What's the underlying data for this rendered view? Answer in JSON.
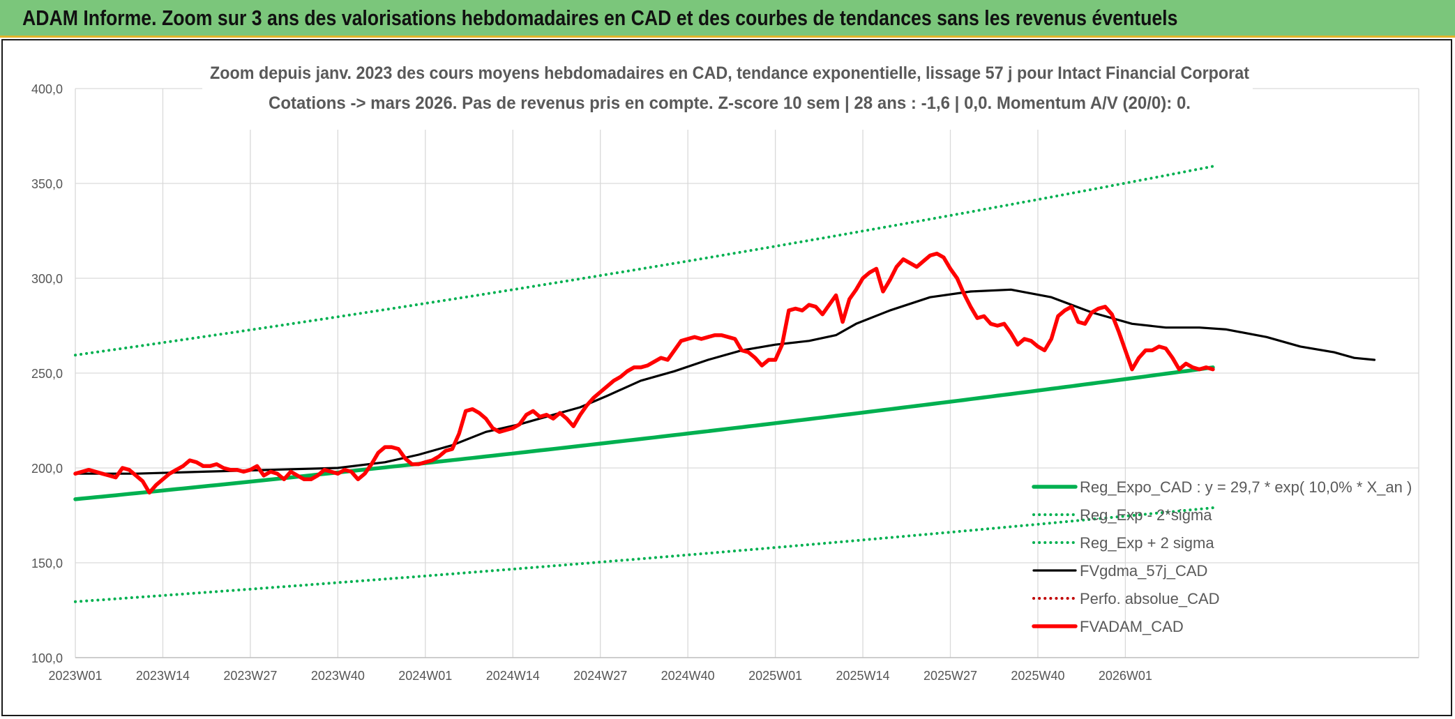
{
  "banner": {
    "title": "ADAM Informe. Zoom sur 3 ans des valorisations hebdomadaires en CAD et des courbes de tendances sans les revenus éventuels"
  },
  "colors": {
    "banner": "#7bc67b",
    "banner_border": "#e3b32a",
    "trend": "#00b050",
    "gdma": "#000000",
    "price": "#ff0000",
    "perfo": "#c00000",
    "grid": "#d9d9d9"
  },
  "chart_data": {
    "type": "line",
    "title": "Zoom depuis janv. 2023 des cours moyens hebdomadaires en CAD, tendance exponentielle, lissage 57 j pour Intact Financial Corporat",
    "subtitle": "Cotations -> mars 2026. Pas de revenus pris en compte. Z-score 10 sem | 28 ans : -1,6 | 0,0. Momentum A/V (20/0): 0.",
    "xlabel": "",
    "ylabel": "",
    "ylim": [
      100,
      400
    ],
    "yticks": [
      100,
      150,
      200,
      250,
      300,
      350,
      400
    ],
    "ytick_labels": [
      "100,0",
      "150,0",
      "200,0",
      "250,0",
      "300,0",
      "350,0",
      "400,0"
    ],
    "xtick_labels": [
      "2023W01",
      "2023W14",
      "2023W27",
      "2023W40",
      "2024W01",
      "2024W14",
      "2024W27",
      "2024W40",
      "2025W01",
      "2025W14",
      "2025W27",
      "2025W40",
      "2026W01"
    ],
    "x_week_count": 170,
    "grid": true,
    "legend_position": "bottom-right",
    "series": [
      {
        "name": "Reg_Expo_CAD : y = 29,7 * exp( 10,0% *  X_an )",
        "style": "solid-thick",
        "color": "#00b050",
        "start": [
          1,
          183.5
        ],
        "end": [
          170,
          253
        ]
      },
      {
        "name": "Reg_Exp - 2*sigma",
        "style": "dotted",
        "color": "#00b050",
        "start": [
          1,
          129.5
        ],
        "end": [
          170,
          179
        ]
      },
      {
        "name": "Reg_Exp + 2 sigma",
        "style": "dotted",
        "color": "#00b050",
        "start": [
          1,
          259.5
        ],
        "end": [
          170,
          359
        ]
      },
      {
        "name": "FVgdma_57j_CAD",
        "style": "solid",
        "color": "#000000",
        "points": [
          [
            1,
            197
          ],
          [
            10,
            197
          ],
          [
            20,
            198
          ],
          [
            30,
            199
          ],
          [
            40,
            200
          ],
          [
            47,
            203
          ],
          [
            52,
            207
          ],
          [
            57,
            212
          ],
          [
            62,
            219
          ],
          [
            67,
            223
          ],
          [
            72,
            228
          ],
          [
            76,
            232
          ],
          [
            80,
            238
          ],
          [
            85,
            246
          ],
          [
            90,
            251
          ],
          [
            95,
            257
          ],
          [
            100,
            262
          ],
          [
            105,
            265
          ],
          [
            110,
            267
          ],
          [
            114,
            270
          ],
          [
            117,
            276
          ],
          [
            122,
            283
          ],
          [
            128,
            290
          ],
          [
            134,
            293
          ],
          [
            140,
            294
          ],
          [
            146,
            290
          ],
          [
            152,
            282
          ],
          [
            158,
            276
          ],
          [
            163,
            274
          ],
          [
            168,
            274
          ],
          [
            172,
            273
          ],
          [
            178,
            269
          ],
          [
            183,
            264
          ],
          [
            188,
            261
          ],
          [
            191,
            258
          ],
          [
            194,
            257
          ]
        ]
      },
      {
        "name": "Perfo. absolue_CAD",
        "style": "dotted",
        "color": "#c00000",
        "points": []
      },
      {
        "name": "FVADAM_CAD",
        "style": "solid-thick",
        "color": "#ff0000",
        "points": [
          [
            1,
            197
          ],
          [
            2,
            198
          ],
          [
            3,
            199
          ],
          [
            4,
            198
          ],
          [
            5,
            197
          ],
          [
            6,
            196
          ],
          [
            7,
            195
          ],
          [
            8,
            200
          ],
          [
            9,
            199
          ],
          [
            10,
            196
          ],
          [
            11,
            193
          ],
          [
            12,
            187
          ],
          [
            13,
            191
          ],
          [
            14,
            194
          ],
          [
            15,
            197
          ],
          [
            16,
            199
          ],
          [
            17,
            201
          ],
          [
            18,
            204
          ],
          [
            19,
            203
          ],
          [
            20,
            201
          ],
          [
            21,
            201
          ],
          [
            22,
            202
          ],
          [
            23,
            200
          ],
          [
            24,
            199
          ],
          [
            25,
            199
          ],
          [
            26,
            198
          ],
          [
            27,
            199
          ],
          [
            28,
            201
          ],
          [
            29,
            196
          ],
          [
            30,
            198
          ],
          [
            31,
            197
          ],
          [
            32,
            194
          ],
          [
            33,
            198
          ],
          [
            34,
            196
          ],
          [
            35,
            194
          ],
          [
            36,
            194
          ],
          [
            37,
            196
          ],
          [
            38,
            199
          ],
          [
            39,
            198
          ],
          [
            40,
            197
          ],
          [
            41,
            199
          ],
          [
            42,
            198
          ],
          [
            43,
            194
          ],
          [
            44,
            197
          ],
          [
            45,
            202
          ],
          [
            46,
            208
          ],
          [
            47,
            211
          ],
          [
            48,
            211
          ],
          [
            49,
            210
          ],
          [
            50,
            205
          ],
          [
            51,
            202
          ],
          [
            52,
            202
          ],
          [
            53,
            203
          ],
          [
            54,
            204
          ],
          [
            55,
            206
          ],
          [
            56,
            209
          ],
          [
            57,
            210
          ],
          [
            58,
            218
          ],
          [
            59,
            230
          ],
          [
            60,
            231
          ],
          [
            61,
            229
          ],
          [
            62,
            226
          ],
          [
            63,
            221
          ],
          [
            64,
            219
          ],
          [
            65,
            220
          ],
          [
            66,
            221
          ],
          [
            67,
            223
          ],
          [
            68,
            228
          ],
          [
            69,
            230
          ],
          [
            70,
            227
          ],
          [
            71,
            228
          ],
          [
            72,
            226
          ],
          [
            73,
            229
          ],
          [
            74,
            226
          ],
          [
            75,
            222
          ],
          [
            76,
            228
          ],
          [
            77,
            233
          ],
          [
            78,
            237
          ],
          [
            79,
            240
          ],
          [
            80,
            243
          ],
          [
            81,
            246
          ],
          [
            82,
            248
          ],
          [
            83,
            251
          ],
          [
            84,
            253
          ],
          [
            85,
            253
          ],
          [
            86,
            254
          ],
          [
            87,
            256
          ],
          [
            88,
            258
          ],
          [
            89,
            257
          ],
          [
            90,
            262
          ],
          [
            91,
            267
          ],
          [
            92,
            268
          ],
          [
            93,
            269
          ],
          [
            94,
            268
          ],
          [
            95,
            269
          ],
          [
            96,
            270
          ],
          [
            97,
            270
          ],
          [
            98,
            269
          ],
          [
            99,
            268
          ],
          [
            100,
            262
          ],
          [
            101,
            261
          ],
          [
            102,
            258
          ],
          [
            103,
            254
          ],
          [
            104,
            257
          ],
          [
            105,
            257
          ],
          [
            106,
            265
          ],
          [
            107,
            283
          ],
          [
            108,
            284
          ],
          [
            109,
            283
          ],
          [
            110,
            286
          ],
          [
            111,
            285
          ],
          [
            112,
            281
          ],
          [
            113,
            286
          ],
          [
            114,
            291
          ],
          [
            115,
            277
          ],
          [
            116,
            289
          ],
          [
            117,
            294
          ],
          [
            118,
            300
          ],
          [
            119,
            303
          ],
          [
            120,
            305
          ],
          [
            121,
            293
          ],
          [
            122,
            299
          ],
          [
            123,
            306
          ],
          [
            124,
            310
          ],
          [
            125,
            308
          ],
          [
            126,
            306
          ],
          [
            127,
            309
          ],
          [
            128,
            312
          ],
          [
            129,
            313
          ],
          [
            130,
            311
          ],
          [
            131,
            305
          ],
          [
            132,
            300
          ],
          [
            133,
            292
          ],
          [
            134,
            285
          ],
          [
            135,
            279
          ],
          [
            136,
            280
          ],
          [
            137,
            276
          ],
          [
            138,
            275
          ],
          [
            139,
            276
          ],
          [
            140,
            271
          ],
          [
            141,
            265
          ],
          [
            142,
            268
          ],
          [
            143,
            267
          ],
          [
            144,
            264
          ],
          [
            145,
            262
          ],
          [
            146,
            268
          ],
          [
            147,
            280
          ],
          [
            148,
            283
          ],
          [
            149,
            285
          ],
          [
            150,
            277
          ],
          [
            151,
            276
          ],
          [
            152,
            282
          ],
          [
            153,
            284
          ],
          [
            154,
            285
          ],
          [
            155,
            281
          ],
          [
            156,
            272
          ],
          [
            157,
            262
          ],
          [
            158,
            252
          ],
          [
            159,
            258
          ],
          [
            160,
            262
          ],
          [
            161,
            262
          ],
          [
            162,
            264
          ],
          [
            163,
            263
          ],
          [
            164,
            258
          ],
          [
            165,
            252
          ],
          [
            166,
            255
          ],
          [
            167,
            253
          ],
          [
            168,
            252
          ],
          [
            169,
            253
          ],
          [
            170,
            252
          ]
        ]
      }
    ]
  }
}
